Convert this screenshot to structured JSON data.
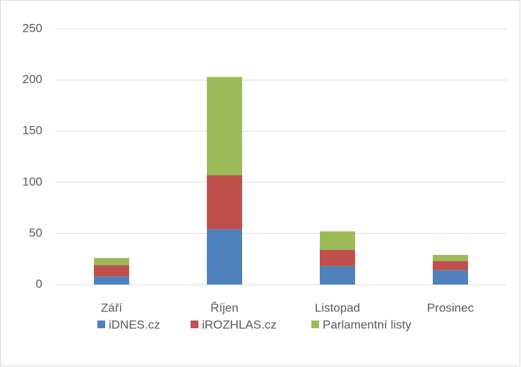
{
  "chart_data": {
    "type": "bar",
    "stacked": true,
    "categories": [
      "Září",
      "Říjen",
      "Listopad",
      "Prosinec"
    ],
    "series": [
      {
        "name": "iDNES.cz",
        "color": "#4f81bd",
        "values": [
          8,
          54,
          18,
          14
        ]
      },
      {
        "name": "iROZHLAS.cz",
        "color": "#c0504d",
        "values": [
          11,
          53,
          16,
          9
        ]
      },
      {
        "name": "Parlamentní listy",
        "color": "#9bbb59",
        "values": [
          7,
          96,
          18,
          6
        ]
      }
    ],
    "ylim": [
      0,
      250
    ],
    "yticks": [
      0,
      50,
      100,
      150,
      200,
      250
    ],
    "grid": true,
    "legend": "bottom"
  }
}
